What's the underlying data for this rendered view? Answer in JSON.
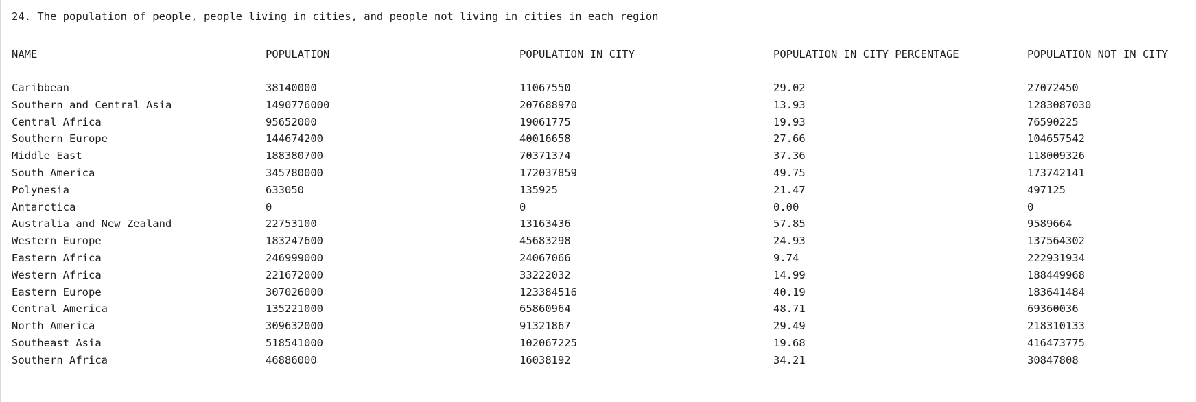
{
  "title": "24. The population of people, people living in cities, and people not living in cities in each region",
  "headers": [
    "NAME",
    "POPULATION",
    "POPULATION IN CITY",
    "POPULATION IN CITY PERCENTAGE",
    "POPULATION NOT IN CITY"
  ],
  "rows": [
    [
      "Caribbean",
      "38140000",
      "11067550",
      "29.02",
      "27072450"
    ],
    [
      "Southern and Central Asia",
      "1490776000",
      "207688970",
      "13.93",
      "1283087030"
    ],
    [
      "Central Africa",
      "95652000",
      "19061775",
      "19.93",
      "76590225"
    ],
    [
      "Southern Europe",
      "144674200",
      "40016658",
      "27.66",
      "104657542"
    ],
    [
      "Middle East",
      "188380700",
      "70371374",
      "37.36",
      "118009326"
    ],
    [
      "South America",
      "345780000",
      "172037859",
      "49.75",
      "173742141"
    ],
    [
      "Polynesia",
      "633050",
      "135925",
      "21.47",
      "497125"
    ],
    [
      "Antarctica",
      "0",
      "0",
      "0.00",
      "0"
    ],
    [
      "Australia and New Zealand",
      "22753100",
      "13163436",
      "57.85",
      "9589664"
    ],
    [
      "Western Europe",
      "183247600",
      "45683298",
      "24.93",
      "137564302"
    ],
    [
      "Eastern Africa",
      "246999000",
      "24067066",
      "9.74",
      "222931934"
    ],
    [
      "Western Africa",
      "221672000",
      "33222032",
      "14.99",
      "188449968"
    ],
    [
      "Eastern Europe",
      "307026000",
      "123384516",
      "40.19",
      "183641484"
    ],
    [
      "Central America",
      "135221000",
      "65860964",
      "48.71",
      "69360036"
    ],
    [
      "North America",
      "309632000",
      "91321867",
      "29.49",
      "218310133"
    ],
    [
      "Southeast Asia",
      "518541000",
      "102067225",
      "19.68",
      "416473775"
    ],
    [
      "Southern Africa",
      "46886000",
      "16038192",
      "34.21",
      "30847808"
    ]
  ]
}
